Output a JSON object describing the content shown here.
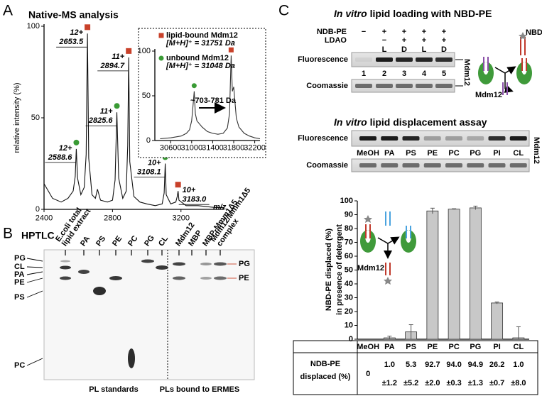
{
  "panel_a": {
    "letter": "A",
    "title": "Native-MS analysis",
    "type": "line",
    "ylabel": "relative intensity (%)",
    "xlabel": "m/z",
    "color": "#111111",
    "x": [
      2400,
      2450,
      2500,
      2540,
      2570,
      2582,
      2588.6,
      2596,
      2615,
      2635,
      2646,
      2653.5,
      2661,
      2680,
      2700,
      2712,
      2730,
      2770,
      2800,
      2815,
      2825.6,
      2836,
      2860,
      2880,
      2889,
      2894.7,
      2901,
      2925,
      2960,
      3000,
      3050,
      3090,
      3102,
      3108.1,
      3114,
      3140,
      3170,
      3178,
      3183,
      3188,
      3230,
      3300,
      3400,
      3450
    ],
    "values": [
      14,
      6,
      4,
      6,
      10,
      18,
      33,
      17,
      8,
      12,
      30,
      96,
      28,
      8,
      6,
      11,
      5,
      4,
      5,
      16,
      53,
      17,
      6,
      10,
      35,
      83,
      26,
      7,
      4,
      3,
      2,
      3,
      9,
      25,
      8,
      3,
      4,
      7,
      10,
      5,
      2,
      2,
      1,
      1
    ],
    "xlim": [
      2400,
      3450
    ],
    "ylim": [
      0,
      100
    ],
    "xticks": [
      2400,
      2800,
      3200
    ],
    "yticks": [
      0,
      50,
      100
    ],
    "peaks": [
      {
        "charge": "12+",
        "mz": 2588.6,
        "marker": "circle",
        "color": "#3a9b35"
      },
      {
        "charge": "12+",
        "mz": 2653.5,
        "marker": "square",
        "color": "#c8412a"
      },
      {
        "charge": "11+",
        "mz": 2825.6,
        "marker": "circle",
        "color": "#3a9b35"
      },
      {
        "charge": "11+",
        "mz": 2894.7,
        "marker": "square",
        "color": "#c8412a"
      },
      {
        "charge": "10+",
        "mz": 3108.1,
        "marker": "circle",
        "color": "#3a9b35"
      },
      {
        "charge": "10+",
        "mz": {
          "value": 3183,
          "label": "3183.0"
        },
        "marker": "square",
        "color": "#c8412a"
      }
    ],
    "inset": {
      "type": "line",
      "color": "#333333",
      "x": [
        30400,
        30600,
        30800,
        30900,
        30960,
        31000,
        31020,
        31048,
        31070,
        31100,
        31200,
        31300,
        31400,
        31500,
        31600,
        31680,
        31720,
        31751,
        31775,
        31800,
        31850,
        31900,
        32000,
        32100,
        32200,
        32300
      ],
      "values": [
        2,
        3,
        5,
        8,
        12,
        22,
        35,
        55,
        30,
        22,
        15,
        10,
        8,
        7,
        8,
        14,
        30,
        95,
        55,
        60,
        25,
        15,
        8,
        5,
        3,
        2
      ],
      "xlim": [
        30300,
        32300
      ],
      "ylim": [
        0,
        100
      ],
      "xticks": [
        30600,
        31000,
        31400,
        31800,
        32200
      ],
      "yticks": [
        0,
        50,
        100
      ],
      "legend": [
        {
          "label": "lipid-bound Mdm12",
          "formula": "[M+H]⁺ = 31751 Da",
          "marker": "square",
          "color": "#c8412a"
        },
        {
          "label": "unbound Mdm12",
          "formula": "[M+H]⁺ = 31048 Da",
          "marker": "circle",
          "color": "#3a9b35"
        }
      ],
      "peaks": [
        {
          "mz": 31751,
          "marker": "square",
          "color": "#c8412a"
        },
        {
          "mz": 31048,
          "marker": "circle",
          "color": "#3a9b35"
        }
      ],
      "annotation": "~703-781 Da"
    }
  },
  "panel_b": {
    "letter": "B",
    "title": "HPTLC",
    "groups": [
      {
        "name": "PL standards",
        "color": "#000000",
        "lanes": [
          [
            "E.coli total",
            "lipid extract"
          ],
          [
            "PA"
          ],
          [
            "PS"
          ],
          [
            "PE"
          ],
          [
            "PC"
          ],
          [
            "PG"
          ],
          [
            "CL"
          ]
        ]
      },
      {
        "name": "PLs bound to ERMES",
        "color": "#c8412a",
        "lanes": [
          [
            "Mdm12"
          ],
          [
            "MBP"
          ],
          [
            "MBP-Mmm1Δ5"
          ],
          [
            "Mdm12/Mmm1Δ5",
            "complex"
          ]
        ]
      }
    ],
    "left_labels": [
      "PG",
      "CL",
      "PA",
      "PE",
      "PS",
      "PC"
    ],
    "right_labels": [
      "PG",
      "PE"
    ]
  },
  "panel_c": {
    "letter": "C",
    "loading": {
      "title_italic": "In vitro",
      "title": "lipid loading with NBD-PE",
      "conditions": [
        {
          "label": "NDB-PE",
          "marks": [
            "−",
            "+",
            "+",
            "+",
            "+"
          ]
        },
        {
          "label": "LDAO",
          "marks": [
            null,
            "−",
            "+",
            "+",
            "+"
          ],
          "types": [
            null,
            "L",
            "D",
            "L",
            "D"
          ]
        }
      ],
      "lane_numbers": [
        1,
        2,
        3,
        4,
        5
      ],
      "rows": [
        "Fluorescence",
        "Coomassie"
      ],
      "protein": "Mdm12",
      "schematic_ligand": "NBD-PE",
      "schematic_protein": "Mdm12"
    },
    "displacement": {
      "title_italic": "In vitro",
      "title": "lipid displacement assay",
      "lanes": [
        "MeOH",
        "PA",
        "PS",
        "PE",
        "PC",
        "PG",
        "PI",
        "CL"
      ],
      "rows": [
        "Fluorescence",
        "Coomassie"
      ],
      "protein": "Mdm12"
    },
    "chart": {
      "type": "bar",
      "ylabel": [
        "NBD-PE displaced (%)",
        "in presence of detergent"
      ],
      "categories": [
        "MeOH",
        "PA",
        "PS",
        "PE",
        "PC",
        "PG",
        "PI",
        "CL"
      ],
      "values": [
        0,
        1.0,
        5.3,
        92.7,
        94.0,
        94.9,
        26.2,
        1.0
      ],
      "value_labels": [
        "0",
        "1.0",
        "5.3",
        "92.7",
        "94.0",
        "94.9",
        "26.2",
        "1.0"
      ],
      "errors": [
        null,
        1.2,
        5.2,
        2.0,
        0.3,
        1.3,
        0.7,
        8.0
      ],
      "error_labels": [
        null,
        "±1.2",
        "±5.2",
        "±2.0",
        "±0.3",
        "±1.3",
        "±0.7",
        "±8.0"
      ],
      "ylim": [
        0,
        100
      ],
      "yticks": [
        0,
        10,
        20,
        30,
        40,
        50,
        60,
        70,
        80,
        90,
        100
      ],
      "color": "#c8c8c8",
      "table_label": [
        "NDB-PE",
        "displaced (%)"
      ],
      "schematic_protein": "Mdm12"
    }
  }
}
